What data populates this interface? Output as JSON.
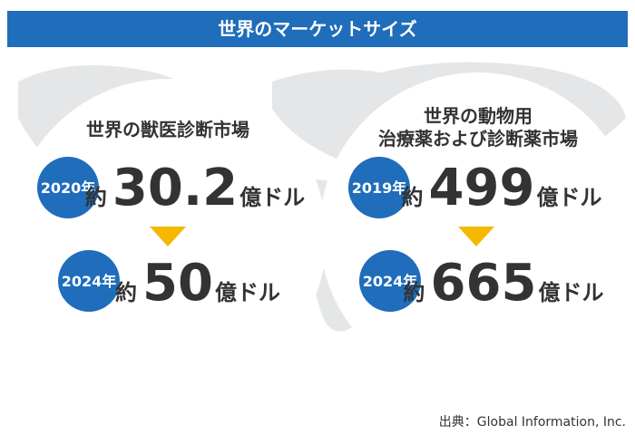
{
  "header": {
    "title": "世界のマーケットサイズ"
  },
  "panels": [
    {
      "title_lines": [
        "世界の獣医診断市場"
      ],
      "items": [
        {
          "year": "2020年",
          "prefix": "約",
          "value": 30.2,
          "unit": "億ドル"
        },
        {
          "year": "2024年",
          "prefix": "約",
          "value": 50,
          "unit": "億ドル"
        }
      ]
    },
    {
      "title_lines": [
        "世界の動物用",
        "治療薬および診断薬市場"
      ],
      "items": [
        {
          "year": "2019年",
          "prefix": "約",
          "value": 499,
          "unit": "億ドル"
        },
        {
          "year": "2024年",
          "prefix": "約",
          "value": 665,
          "unit": "億ドル"
        }
      ]
    }
  ],
  "source": "出典：Global Information, Inc."
}
